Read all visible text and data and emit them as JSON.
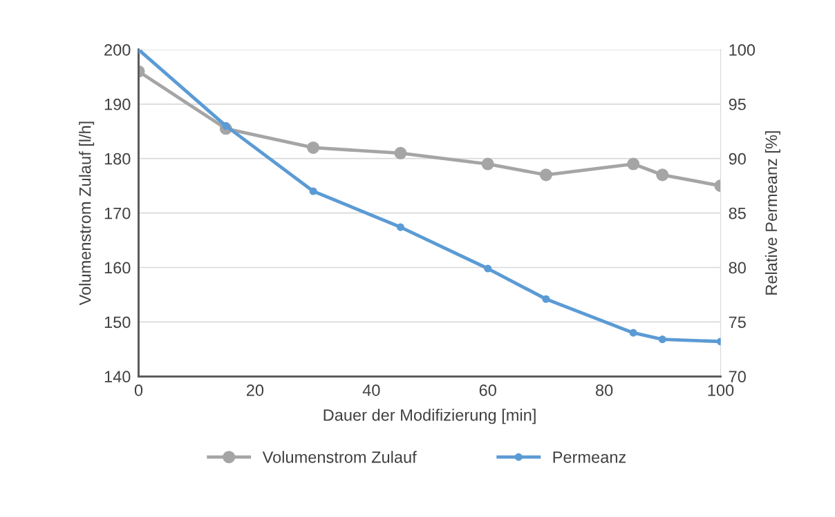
{
  "chart_data": {
    "type": "line",
    "xlabel": "Dauer der Modifizierung [min]",
    "ylabel": "Volumenstrom Zulauf [l/h]",
    "y2label": "Relative Permeanz [%]",
    "x": [
      0,
      15,
      30,
      45,
      60,
      70,
      85,
      90,
      100
    ],
    "series": [
      {
        "name": "Volumenstrom Zulauf",
        "color": "#a5a5a5",
        "values": [
          196,
          185.5,
          182,
          181,
          179,
          177,
          179,
          177,
          175
        ]
      },
      {
        "name": "Permeanz",
        "color": "#5b9bd5",
        "axis": "y2",
        "values": [
          100,
          93,
          87,
          83.7,
          79.9,
          77.1,
          74,
          73.4,
          73.2
        ]
      }
    ],
    "xlim": [
      0,
      100
    ],
    "xticks": [
      0,
      20,
      40,
      60,
      80,
      100
    ],
    "ylim": [
      140,
      200
    ],
    "yticks": [
      140,
      150,
      160,
      170,
      180,
      190,
      200
    ],
    "y2lim": [
      70,
      100
    ],
    "y2ticks": [
      70,
      75,
      80,
      85,
      90,
      95,
      100
    ],
    "grid": "y",
    "legend": "bottom",
    "marker": "circle",
    "line_style": "solid"
  }
}
